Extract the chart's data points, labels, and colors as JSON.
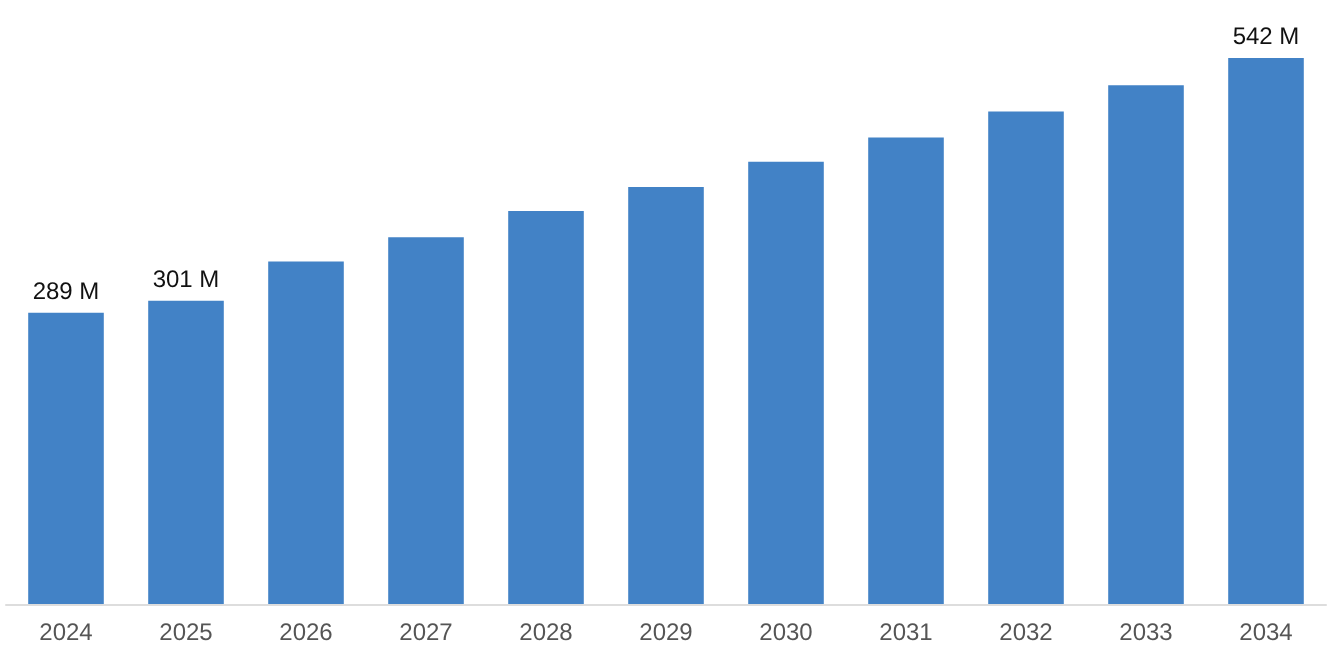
{
  "chart_data": {
    "type": "bar",
    "categories": [
      "2024",
      "2025",
      "2026",
      "2027",
      "2028",
      "2029",
      "2030",
      "2031",
      "2032",
      "2033",
      "2034"
    ],
    "values": [
      289,
      301,
      340,
      364,
      390,
      414,
      439,
      463,
      489,
      515,
      542
    ],
    "value_labels": [
      "289 M",
      "301 M",
      null,
      null,
      null,
      null,
      null,
      null,
      null,
      null,
      "542 M"
    ],
    "color": "#4282c6"
  }
}
